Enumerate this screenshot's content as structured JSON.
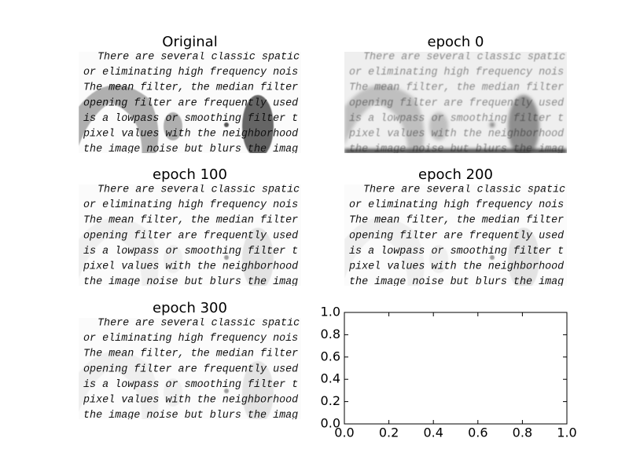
{
  "chart_data": [
    {
      "type": "image",
      "title": "Original",
      "lines": [
        "There are several classic spatic",
        "or eliminating high frequency nois",
        "The mean filter, the median filter",
        "opening filter are frequently used",
        "is a lowpass or smoothing filter t",
        "pixel values with the neighborhood",
        "the image noise but blurs the imag"
      ]
    },
    {
      "type": "image",
      "title": "epoch 0",
      "lines": [
        "There are several classic spatic",
        "or eliminating high frequency nois",
        "The mean filter, the median filter",
        "opening filter are frequently used",
        "is a lowpass or smoothing filter t",
        "pixel values with the neighborhood",
        "the image noise but blurs the imag"
      ]
    },
    {
      "type": "image",
      "title": "epoch 100",
      "lines": [
        "There are several classic spatic",
        "or eliminating high frequency nois",
        "The mean filter, the median filter",
        "opening filter are frequently used",
        "is a lowpass or smoothing filter t",
        "pixel values with the neighborhood",
        "the image noise but blurs the imag"
      ]
    },
    {
      "type": "image",
      "title": "epoch 200",
      "lines": [
        "There are several classic spatic",
        "or eliminating high frequency nois",
        "The mean filter, the median filter",
        "opening filter are frequently used",
        "is a lowpass or smoothing filter t",
        "pixel values with the neighborhood",
        "the image noise but blurs the imag"
      ]
    },
    {
      "type": "image",
      "title": "epoch 300",
      "lines": [
        "There are several classic spatic",
        "or eliminating high frequency nois",
        "The mean filter, the median filter",
        "opening filter are frequently used",
        "is a lowpass or smoothing filter t",
        "pixel values with the neighborhood",
        "the image noise but blurs the imag"
      ]
    },
    {
      "type": "empty",
      "xlim": [
        0,
        1
      ],
      "ylim": [
        0,
        1
      ],
      "xticks": [
        {
          "value": 0,
          "label": "0.0"
        },
        {
          "value": 0.2,
          "label": "0.2"
        },
        {
          "value": 0.4,
          "label": "0.4"
        },
        {
          "value": 0.6,
          "label": "0.6"
        },
        {
          "value": 0.8,
          "label": "0.8"
        },
        {
          "value": 1,
          "label": "1.0"
        }
      ],
      "yticks": [
        {
          "value": 0,
          "label": "0.0"
        },
        {
          "value": 0.2,
          "label": "0.2"
        },
        {
          "value": 0.4,
          "label": "0.4"
        },
        {
          "value": 0.6,
          "label": "0.6"
        },
        {
          "value": 0.8,
          "label": "0.8"
        },
        {
          "value": 1,
          "label": "1.0"
        }
      ]
    }
  ]
}
